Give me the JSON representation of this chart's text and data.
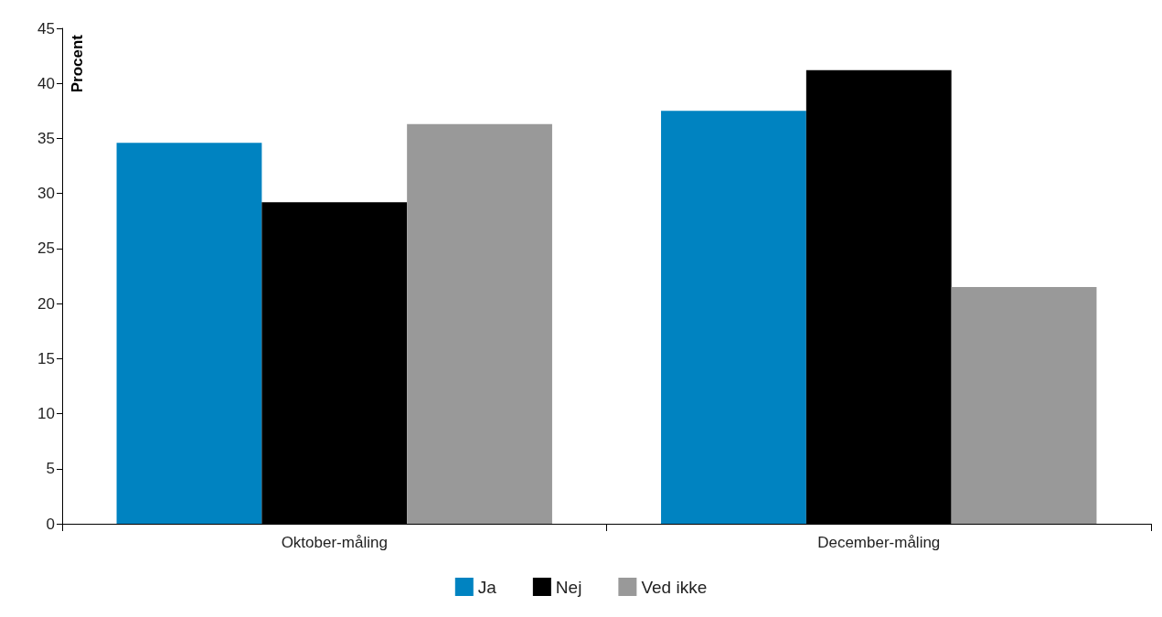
{
  "chart_data": {
    "type": "bar",
    "ylabel": "Procent",
    "categories": [
      "Oktober-måling",
      "December-måling"
    ],
    "series": [
      {
        "name": "Ja",
        "color": "#0083c1",
        "values": [
          34.6,
          37.5
        ]
      },
      {
        "name": "Nej",
        "color": "#000000",
        "values": [
          29.2,
          41.2
        ]
      },
      {
        "name": "Ved ikke",
        "color": "#999999",
        "values": [
          36.3,
          21.5
        ]
      }
    ],
    "ylim": [
      0,
      45
    ],
    "yticks": [
      0,
      5,
      10,
      15,
      20,
      25,
      30,
      35,
      40,
      45
    ],
    "grid": false,
    "legend": "bottom"
  }
}
